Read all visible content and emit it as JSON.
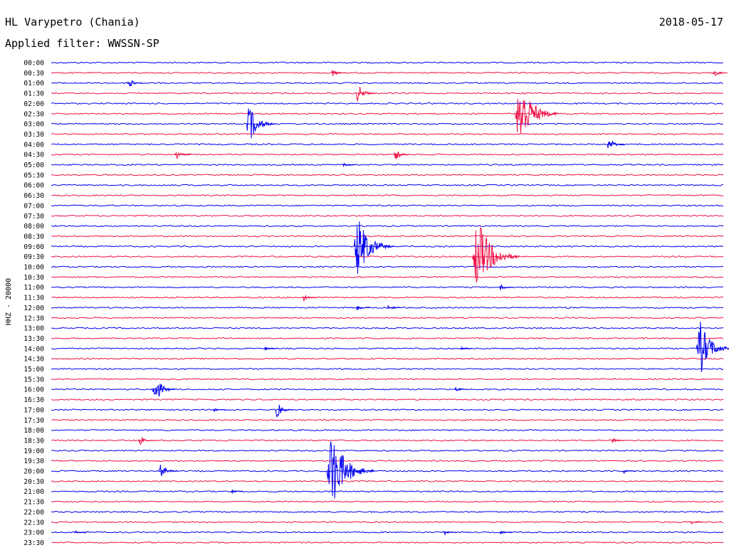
{
  "header": {
    "station": "HL Varypetro (Chania)",
    "date": "2018-05-17",
    "filter": "Applied filter: WWSSN-SP"
  },
  "chart_data": {
    "type": "line",
    "title": "HL Varypetro (Chania)",
    "ylabel": "HHZ - 20000",
    "rows": [
      "00:00",
      "00:30",
      "01:00",
      "01:30",
      "02:00",
      "02:30",
      "03:00",
      "03:30",
      "04:00",
      "04:30",
      "05:00",
      "05:30",
      "06:00",
      "06:30",
      "07:00",
      "07:30",
      "08:00",
      "08:30",
      "09:00",
      "09:30",
      "10:00",
      "10:30",
      "11:00",
      "11:30",
      "12:00",
      "12:30",
      "13:00",
      "13:30",
      "14:00",
      "14:30",
      "15:00",
      "15:30",
      "16:00",
      "16:30",
      "17:00",
      "17:30",
      "18:00",
      "18:30",
      "19:00",
      "19:30",
      "20:00",
      "20:30",
      "21:00",
      "21:30",
      "22:00",
      "22:30",
      "23:00",
      "23:30"
    ],
    "colors": [
      "#0000ee",
      "#ee1144"
    ],
    "events": [
      {
        "row": "00:30",
        "minute": 12.5,
        "amplitude": 0.45
      },
      {
        "row": "00:30",
        "minute": 29.5,
        "amplitude": 0.6
      },
      {
        "row": "01:00",
        "minute": 3.4,
        "amplitude": 0.6
      },
      {
        "row": "01:30",
        "minute": 13.6,
        "amplitude": 1.2
      },
      {
        "row": "03:00",
        "minute": 8.7,
        "amplitude": 2.5
      },
      {
        "row": "02:30",
        "minute": 20.7,
        "amplitude": 4.5
      },
      {
        "row": "04:00",
        "minute": 24.8,
        "amplitude": 0.9
      },
      {
        "row": "04:30",
        "minute": 5.5,
        "amplitude": 0.8
      },
      {
        "row": "04:30",
        "minute": 15.3,
        "amplitude": 0.7
      },
      {
        "row": "05:00",
        "minute": 13.0,
        "amplitude": 0.25
      },
      {
        "row": "09:00",
        "minute": 13.5,
        "amplitude": 4.0
      },
      {
        "row": "09:30",
        "minute": 18.8,
        "amplitude": 5.0
      },
      {
        "row": "11:00",
        "minute": 20.0,
        "amplitude": 0.45
      },
      {
        "row": "11:30",
        "minute": 11.2,
        "amplitude": 0.5
      },
      {
        "row": "12:00",
        "minute": 13.6,
        "amplitude": 0.4
      },
      {
        "row": "12:00",
        "minute": 15.0,
        "amplitude": 0.4
      },
      {
        "row": "14:00",
        "minute": 28.8,
        "amplitude": 3.5
      },
      {
        "row": "14:00",
        "minute": 9.5,
        "amplitude": 0.25
      },
      {
        "row": "14:00",
        "minute": 18.2,
        "amplitude": 0.25
      },
      {
        "row": "16:00",
        "minute": 4.5,
        "amplitude": 1.8
      },
      {
        "row": "16:00",
        "minute": 18.0,
        "amplitude": 0.3
      },
      {
        "row": "17:00",
        "minute": 10.0,
        "amplitude": 1.0
      },
      {
        "row": "17:00",
        "minute": 7.2,
        "amplitude": 0.25
      },
      {
        "row": "18:30",
        "minute": 3.9,
        "amplitude": 0.6
      },
      {
        "row": "18:30",
        "minute": 25.0,
        "amplitude": 0.3
      },
      {
        "row": "20:00",
        "minute": 4.8,
        "amplitude": 1.0
      },
      {
        "row": "20:00",
        "minute": 12.3,
        "amplitude": 5.0
      },
      {
        "row": "20:00",
        "minute": 25.5,
        "amplitude": 0.3
      },
      {
        "row": "21:00",
        "minute": 8.0,
        "amplitude": 0.25
      },
      {
        "row": "23:00",
        "minute": 1.0,
        "amplitude": 0.3
      },
      {
        "row": "23:00",
        "minute": 17.5,
        "amplitude": 0.3
      },
      {
        "row": "23:00",
        "minute": 20.0,
        "amplitude": 0.25
      },
      {
        "row": "22:30",
        "minute": 28.5,
        "amplitude": 0.3
      }
    ]
  }
}
